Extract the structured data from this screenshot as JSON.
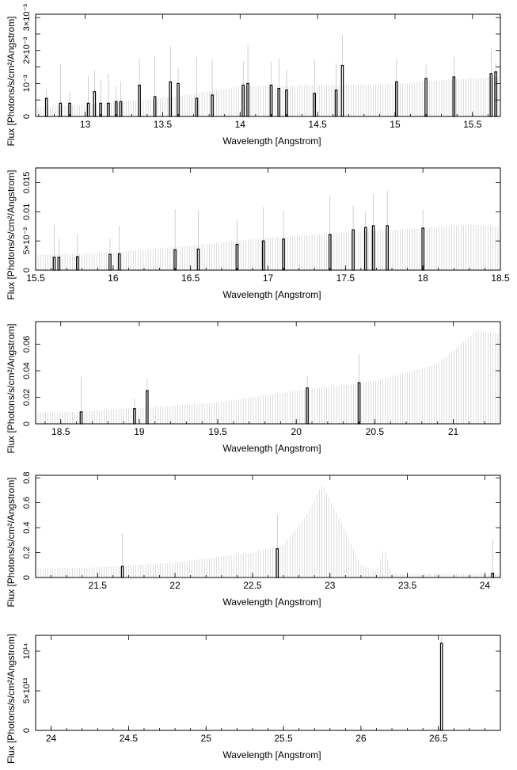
{
  "colors": {
    "axis": "#000000",
    "spectrum": "#c8c8c8",
    "errorbar": "#b0b0b0",
    "line": "#000000"
  },
  "chart_data": [
    {
      "type": "bar",
      "xlabel": "Wavelength [Angstrom]",
      "ylabel": "Flux [Photons/s/cm²/Angstrom]",
      "xlim": [
        12.68,
        15.68
      ],
      "ylim": [
        0,
        0.0031
      ],
      "xticks": [
        13,
        13.5,
        14,
        14.5,
        15,
        15.5
      ],
      "xtick_labels": [
        "13",
        "13.5",
        "14",
        "14.5",
        "15",
        "15.5"
      ],
      "yticks": [
        0,
        0.0005,
        0.001,
        0.0015,
        0.002,
        0.0025,
        0.003
      ],
      "ytick_labels": [
        "0",
        "",
        "10⁻³",
        "",
        "2×10⁻³",
        "",
        "3×10⁻³"
      ],
      "continuum": [
        [
          12.68,
          0.00028
        ],
        [
          13.0,
          0.00035
        ],
        [
          13.5,
          0.00055
        ],
        [
          14.0,
          0.0009
        ],
        [
          14.5,
          0.00095
        ],
        [
          15.0,
          0.00098
        ],
        [
          15.3,
          0.0011
        ],
        [
          15.68,
          0.0012
        ]
      ],
      "lines": [
        {
          "x": 12.75,
          "y": 0.00055
        },
        {
          "x": 12.84,
          "y": 0.0004
        },
        {
          "x": 12.9,
          "y": 0.0004
        },
        {
          "x": 13.02,
          "y": 0.0004
        },
        {
          "x": 13.06,
          "y": 0.00075
        },
        {
          "x": 13.1,
          "y": 0.0004
        },
        {
          "x": 13.15,
          "y": 0.0004
        },
        {
          "x": 13.2,
          "y": 0.00045
        },
        {
          "x": 13.23,
          "y": 0.00045
        },
        {
          "x": 13.35,
          "y": 0.00095
        },
        {
          "x": 13.45,
          "y": 0.0006
        },
        {
          "x": 13.55,
          "y": 0.00105
        },
        {
          "x": 13.6,
          "y": 0.001
        },
        {
          "x": 13.72,
          "y": 0.00055
        },
        {
          "x": 13.82,
          "y": 0.00065
        },
        {
          "x": 14.02,
          "y": 0.00095
        },
        {
          "x": 14.05,
          "y": 0.001
        },
        {
          "x": 14.2,
          "y": 0.00095
        },
        {
          "x": 14.25,
          "y": 0.00085
        },
        {
          "x": 14.3,
          "y": 0.0008
        },
        {
          "x": 14.48,
          "y": 0.0007
        },
        {
          "x": 14.62,
          "y": 0.0008
        },
        {
          "x": 14.66,
          "y": 0.00155
        },
        {
          "x": 15.01,
          "y": 0.00105
        },
        {
          "x": 15.2,
          "y": 0.00115
        },
        {
          "x": 15.38,
          "y": 0.0012
        },
        {
          "x": 15.62,
          "y": 0.0013
        },
        {
          "x": 15.65,
          "y": 0.00135
        }
      ]
    },
    {
      "type": "bar",
      "xlabel": "Wavelength [Angstrom]",
      "ylabel": "Flux [Photons/s/cm²/Angstrom]",
      "xlim": [
        15.5,
        18.5
      ],
      "ylim": [
        0,
        0.0175
      ],
      "xticks": [
        15.5,
        16,
        16.5,
        17,
        17.5,
        18,
        18.5
      ],
      "xtick_labels": [
        "15.5",
        "16",
        "16.5",
        "17",
        "17.5",
        "18",
        "18.5"
      ],
      "yticks": [
        0,
        0.005,
        0.01,
        0.015
      ],
      "ytick_labels": [
        "0",
        "5×10⁻³",
        "0.01",
        "0.015"
      ],
      "continuum": [
        [
          15.5,
          0.0026
        ],
        [
          16.0,
          0.003
        ],
        [
          16.5,
          0.0042
        ],
        [
          17.0,
          0.0055
        ],
        [
          17.5,
          0.0064
        ],
        [
          18.0,
          0.0072
        ],
        [
          18.3,
          0.0078
        ],
        [
          18.5,
          0.0074
        ]
      ],
      "lines": [
        {
          "x": 15.62,
          "y": 0.0022
        },
        {
          "x": 15.65,
          "y": 0.0022
        },
        {
          "x": 15.77,
          "y": 0.0023
        },
        {
          "x": 15.98,
          "y": 0.0027
        },
        {
          "x": 16.04,
          "y": 0.0028
        },
        {
          "x": 16.4,
          "y": 0.0035
        },
        {
          "x": 16.55,
          "y": 0.0036
        },
        {
          "x": 16.8,
          "y": 0.0044
        },
        {
          "x": 16.97,
          "y": 0.005
        },
        {
          "x": 17.1,
          "y": 0.0053
        },
        {
          "x": 17.4,
          "y": 0.0061
        },
        {
          "x": 17.55,
          "y": 0.0069
        },
        {
          "x": 17.63,
          "y": 0.0073
        },
        {
          "x": 17.68,
          "y": 0.0076
        },
        {
          "x": 17.77,
          "y": 0.0076
        },
        {
          "x": 18.0,
          "y": 0.0072
        }
      ]
    },
    {
      "type": "bar",
      "xlabel": "Wavelength [Angstrom]",
      "ylabel": "Flux [Photons/s/cm²/Angstrom]",
      "xlim": [
        18.34,
        21.3
      ],
      "ylim": [
        0,
        0.077
      ],
      "xticks": [
        18.5,
        19,
        19.5,
        20,
        20.5,
        21
      ],
      "xtick_labels": [
        "18.5",
        "19",
        "19.5",
        "20",
        "20.5",
        "21"
      ],
      "yticks": [
        0,
        0.02,
        0.04,
        0.06
      ],
      "ytick_labels": [
        "0",
        "0.02",
        "0.04",
        "0.06"
      ],
      "continuum": [
        [
          18.34,
          0.0085
        ],
        [
          18.6,
          0.009
        ],
        [
          19.0,
          0.012
        ],
        [
          19.5,
          0.016
        ],
        [
          20.0,
          0.025
        ],
        [
          20.5,
          0.032
        ],
        [
          20.9,
          0.045
        ],
        [
          21.15,
          0.07
        ],
        [
          21.3,
          0.068
        ]
      ],
      "lines": [
        {
          "x": 18.63,
          "y": 0.009
        },
        {
          "x": 18.97,
          "y": 0.0115
        },
        {
          "x": 19.05,
          "y": 0.025
        },
        {
          "x": 20.07,
          "y": 0.027
        },
        {
          "x": 20.4,
          "y": 0.031
        }
      ]
    },
    {
      "type": "bar",
      "xlabel": "Wavelength [Angstrom]",
      "ylabel": "Flux [Photons/s/cm²/Angstrom]",
      "xlim": [
        21.1,
        24.1
      ],
      "ylim": [
        0,
        0.82
      ],
      "xticks": [
        21.5,
        22,
        22.5,
        23,
        23.5,
        24
      ],
      "xtick_labels": [
        "21.5",
        "22",
        "22.5",
        "23",
        "23.5",
        "24"
      ],
      "yticks": [
        0,
        0.2,
        0.4,
        0.6,
        0.8
      ],
      "ytick_labels": [
        "0",
        "0.2",
        "0.4",
        "0.6",
        "0.8"
      ],
      "continuum": [
        [
          21.1,
          0.07
        ],
        [
          21.5,
          0.08
        ],
        [
          22.0,
          0.12
        ],
        [
          22.5,
          0.2
        ],
        [
          22.7,
          0.26
        ],
        [
          22.85,
          0.5
        ],
        [
          22.95,
          0.75
        ],
        [
          23.05,
          0.5
        ],
        [
          23.2,
          0.1
        ],
        [
          23.3,
          0.05
        ],
        [
          23.35,
          0.24
        ],
        [
          23.4,
          0.03
        ],
        [
          24.1,
          0.03
        ]
      ],
      "lines": [
        {
          "x": 21.66,
          "y": 0.09
        },
        {
          "x": 22.66,
          "y": 0.23
        },
        {
          "x": 24.05,
          "y": 0.035
        }
      ]
    },
    {
      "type": "bar",
      "xlabel": "Wavelength [Angstrom]",
      "ylabel": "Flux [Photons/s/cm²/Angstrom]",
      "xlim": [
        23.9,
        26.9
      ],
      "ylim": [
        0,
        120000000000000.0
      ],
      "xticks": [
        24,
        24.5,
        25,
        25.5,
        26,
        26.5
      ],
      "xtick_labels": [
        "24",
        "24.5",
        "25",
        "25.5",
        "26",
        "26.5"
      ],
      "yticks": [
        0,
        50000000000000.0,
        100000000000000.0
      ],
      "ytick_labels": [
        "0",
        "5×10¹³",
        "10¹⁴"
      ],
      "continuum": [
        [
          23.9,
          0
        ],
        [
          26.9,
          0
        ]
      ],
      "lines": [
        {
          "x": 26.52,
          "y": 110000000000000.0
        }
      ]
    }
  ]
}
